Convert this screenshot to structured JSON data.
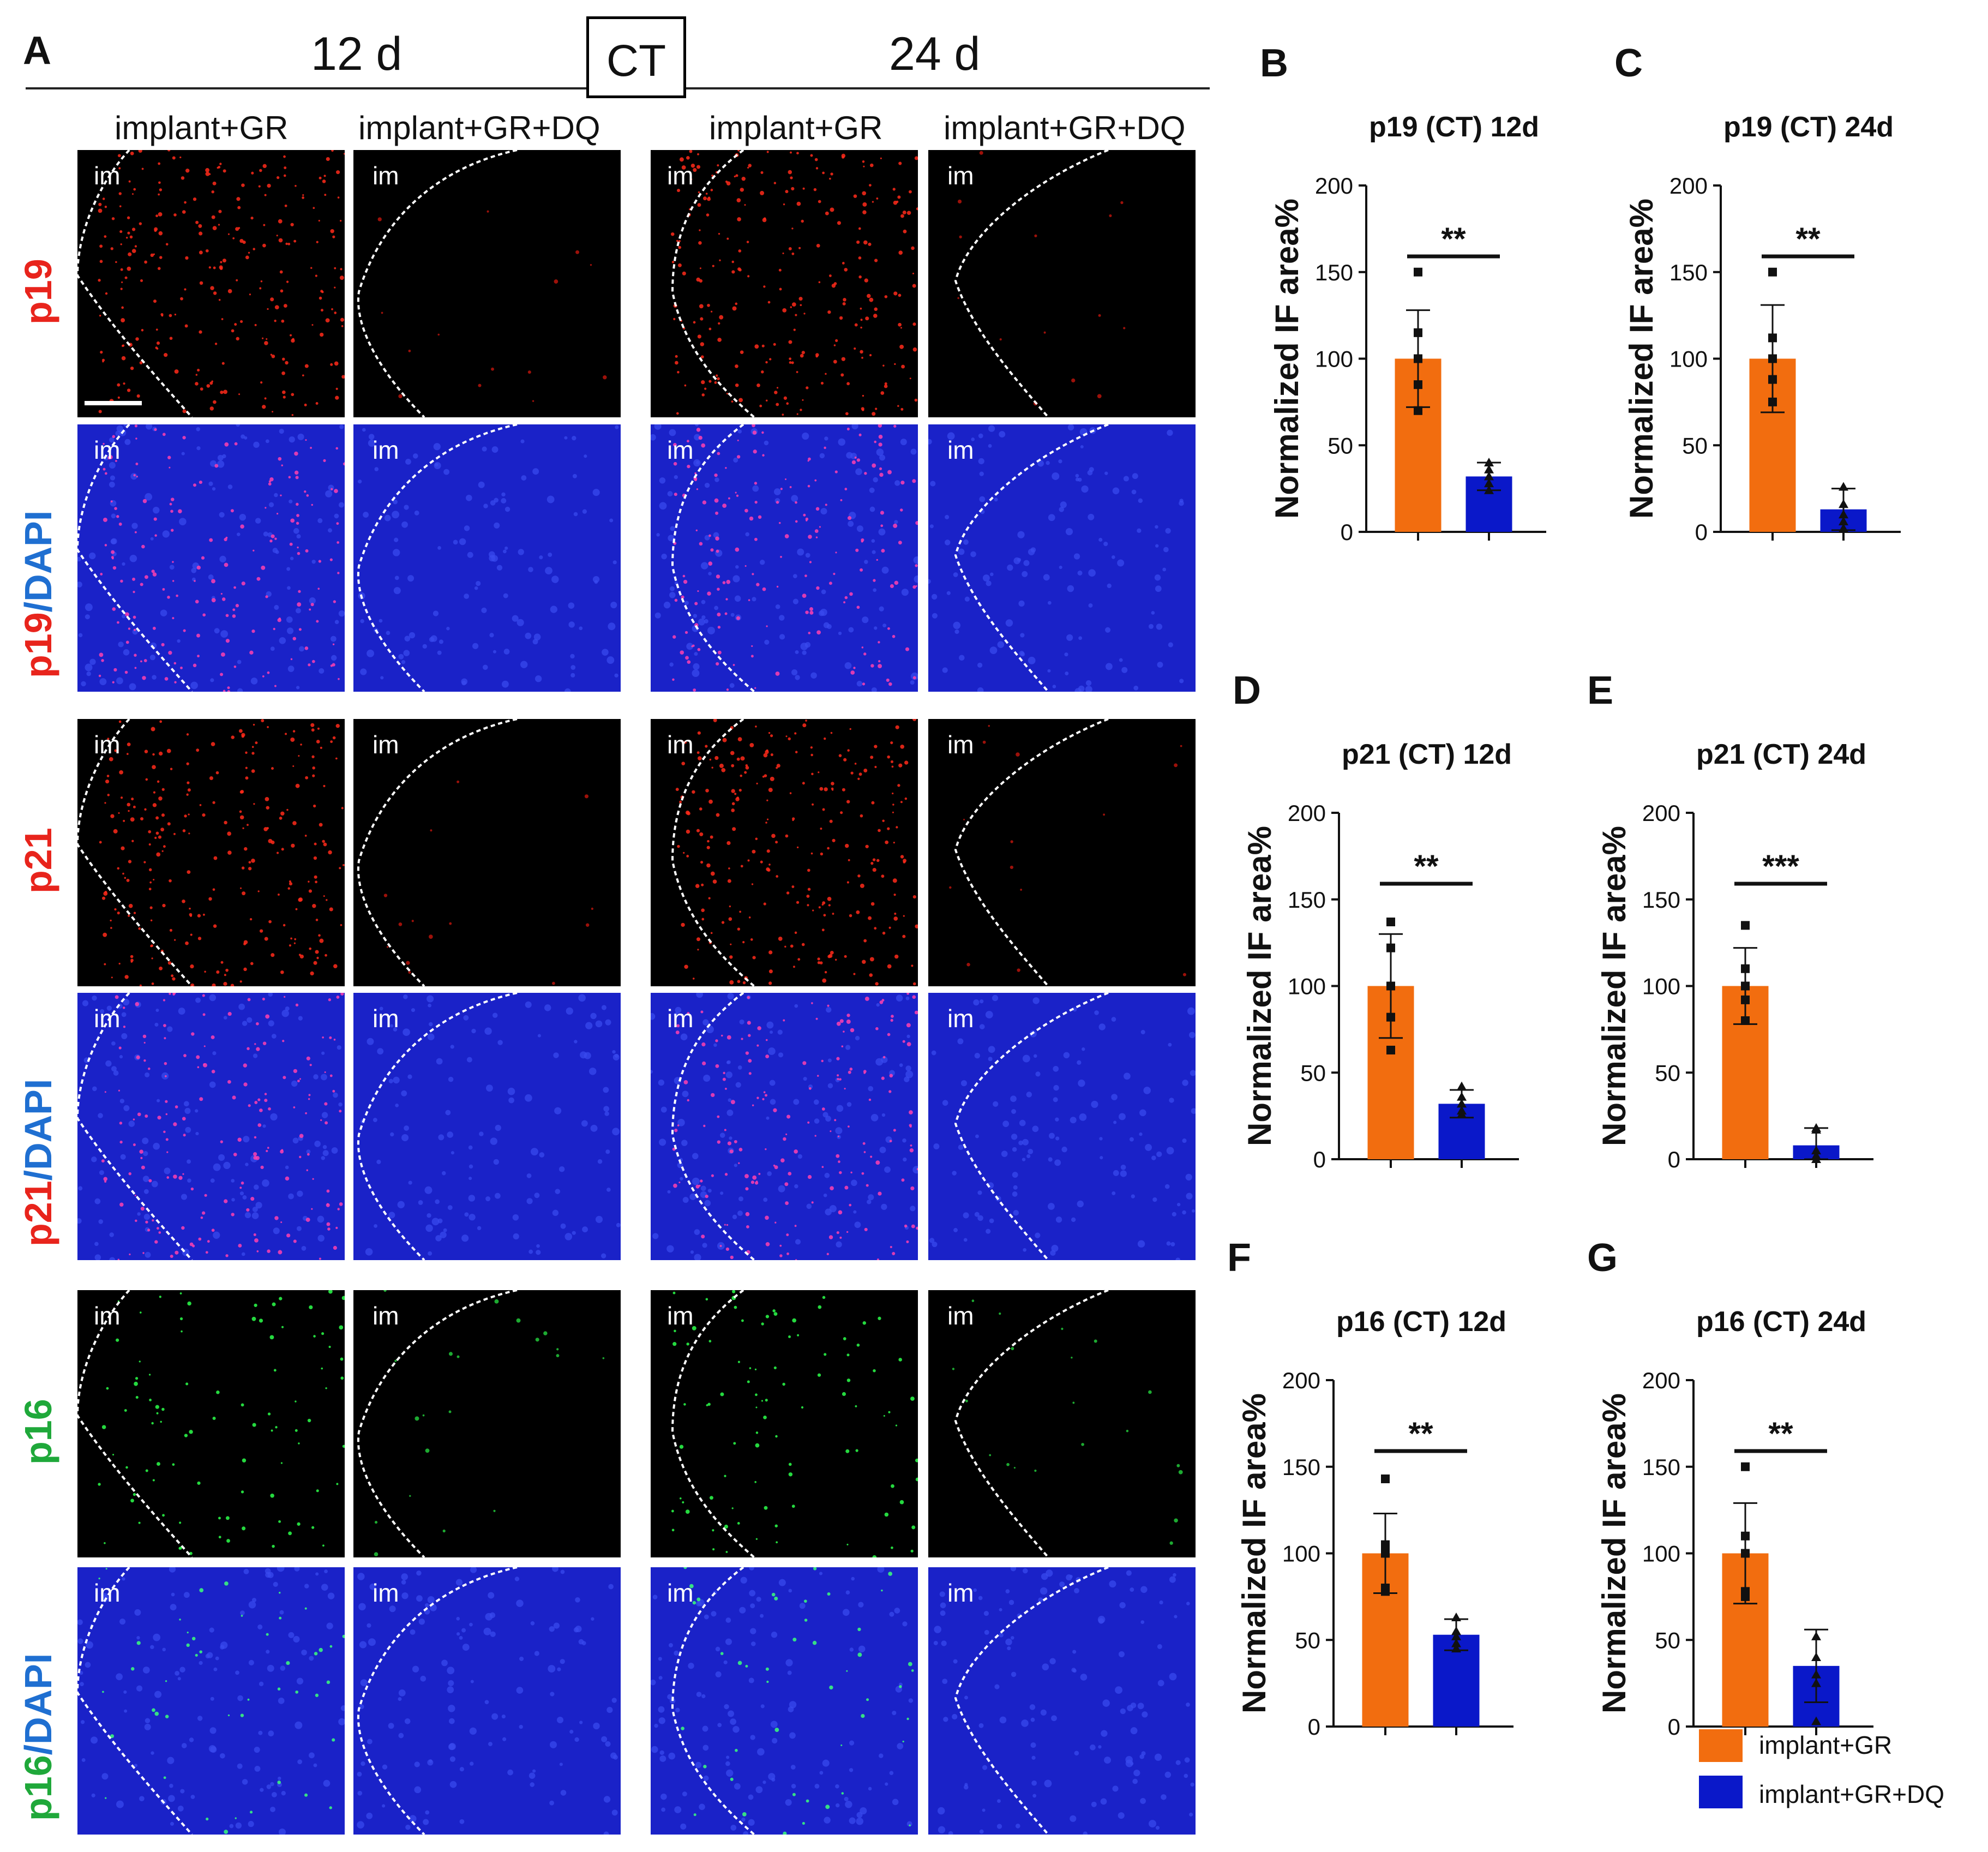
{
  "panel_a": {
    "letter": "A",
    "header_left": "12 d",
    "header_box": "CT",
    "header_right": "24 d",
    "columns": [
      "implant+GR",
      "implant+GR+DQ",
      "implant+GR",
      "implant+GR+DQ"
    ],
    "rows": [
      {
        "marker": "p19",
        "suffix": "",
        "marker_color": "#e8241c",
        "suffix_color": "#1f6fd1"
      },
      {
        "marker": "p19",
        "suffix": "/DAPI",
        "marker_color": "#e8241c",
        "suffix_color": "#1f6fd1"
      },
      {
        "marker": "p21",
        "suffix": "",
        "marker_color": "#e8241c",
        "suffix_color": "#1f6fd1"
      },
      {
        "marker": "p21",
        "suffix": "/DAPI",
        "marker_color": "#e8241c",
        "suffix_color": "#1f6fd1"
      },
      {
        "marker": "p16",
        "suffix": "",
        "marker_color": "#1fa83a",
        "suffix_color": "#1f6fd1"
      },
      {
        "marker": "p16",
        "suffix": "/DAPI",
        "marker_color": "#1fa83a",
        "suffix_color": "#1f6fd1"
      }
    ],
    "region_label": "im"
  },
  "legend": {
    "items": [
      {
        "label": "implant+GR",
        "color": "#f26d0f"
      },
      {
        "label": "implant+GR+DQ",
        "color": "#0a18c9"
      }
    ]
  },
  "chart_data": [
    {
      "panel": "B",
      "type": "bar",
      "title": "p19 (CT) 12d",
      "ylabel": "Normalized IF area%",
      "ylim": [
        0,
        200
      ],
      "yticks": [
        0,
        50,
        100,
        150,
        200
      ],
      "categories": [
        "implant+GR",
        "implant+GR+DQ"
      ],
      "values": [
        100,
        32
      ],
      "errors": [
        28,
        8
      ],
      "points": [
        [
          150,
          115,
          100,
          85,
          70
        ],
        [
          40,
          36,
          32,
          28,
          24
        ]
      ],
      "significance": "**"
    },
    {
      "panel": "C",
      "type": "bar",
      "title": "p19 (CT) 24d",
      "ylabel": "Normalized IF area%",
      "ylim": [
        0,
        200
      ],
      "yticks": [
        0,
        50,
        100,
        150,
        200
      ],
      "categories": [
        "implant+GR",
        "implant+GR+DQ"
      ],
      "values": [
        100,
        13
      ],
      "errors": [
        31,
        12
      ],
      "points": [
        [
          150,
          112,
          100,
          88,
          75
        ],
        [
          26,
          16,
          10,
          6,
          2
        ]
      ],
      "significance": "**"
    },
    {
      "panel": "D",
      "type": "bar",
      "title": "p21 (CT)  12d",
      "ylabel": "Normalized IF area%",
      "ylim": [
        0,
        200
      ],
      "yticks": [
        0,
        50,
        100,
        150,
        200
      ],
      "categories": [
        "implant+GR",
        "implant+GR+DQ"
      ],
      "values": [
        100,
        32
      ],
      "errors": [
        30,
        8
      ],
      "points": [
        [
          137,
          122,
          100,
          82,
          63
        ],
        [
          42,
          36,
          32,
          28,
          26
        ]
      ],
      "significance": "**"
    },
    {
      "panel": "E",
      "type": "bar",
      "title": "p21 (CT)  24d",
      "ylabel": "Normalized IF area%",
      "ylim": [
        0,
        200
      ],
      "yticks": [
        0,
        50,
        100,
        150,
        200
      ],
      "categories": [
        "implant+GR",
        "implant+GR+DQ"
      ],
      "values": [
        100,
        8
      ],
      "errors": [
        22,
        10
      ],
      "points": [
        [
          135,
          110,
          100,
          92,
          80
        ],
        [
          18,
          17,
          5,
          2,
          0
        ]
      ],
      "significance": "***"
    },
    {
      "panel": "F",
      "type": "bar",
      "title": "p16 (CT)  12d",
      "ylabel": "Normalized IF area%",
      "ylim": [
        0,
        200
      ],
      "yticks": [
        0,
        50,
        100,
        150,
        200
      ],
      "categories": [
        "implant+GR",
        "implant+GR+DQ"
      ],
      "values": [
        100,
        53
      ],
      "errors": [
        23,
        9
      ],
      "points": [
        [
          143,
          105,
          100,
          80,
          78
        ],
        [
          63,
          55,
          52,
          48,
          45
        ]
      ],
      "significance": "**"
    },
    {
      "panel": "G",
      "type": "bar",
      "title": "p16 (CT)  24d",
      "ylabel": "Normalized IF area%",
      "ylim": [
        0,
        200
      ],
      "yticks": [
        0,
        50,
        100,
        150,
        200
      ],
      "categories": [
        "implant+GR",
        "implant+GR+DQ"
      ],
      "values": [
        100,
        35
      ],
      "errors": [
        29,
        21
      ],
      "points": [
        [
          150,
          110,
          100,
          78,
          75
        ],
        [
          52,
          40,
          30,
          25,
          3
        ]
      ],
      "significance": "**"
    }
  ]
}
